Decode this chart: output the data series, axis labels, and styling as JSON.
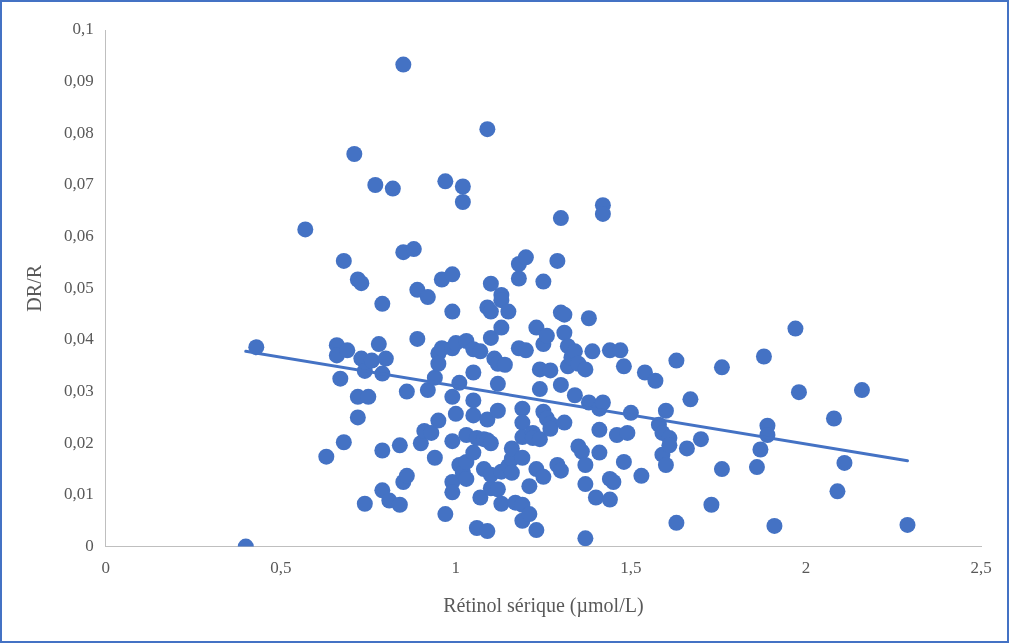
{
  "chart_data": {
    "type": "scatter",
    "xlabel": "Rétinol sérique (µmol/L)",
    "ylabel": "DR/R",
    "marker": "circle",
    "grid": false,
    "legend": false,
    "xlim": [
      0,
      2.5
    ],
    "xticks": [
      0,
      {
        "value": 0.5,
        "label": "0,5"
      },
      1,
      {
        "value": 1.5,
        "label": "1,5"
      },
      2,
      {
        "value": 2.5,
        "label": "2,5"
      }
    ],
    "ylim": [
      0,
      0.1
    ],
    "yticks": [
      0,
      {
        "value": 0.01,
        "label": "0,01"
      },
      {
        "value": 0.02,
        "label": "0,02"
      },
      {
        "value": 0.03,
        "label": "0,03"
      },
      {
        "value": 0.04,
        "label": "0,04"
      },
      {
        "value": 0.05,
        "label": "0,05"
      },
      {
        "value": 0.06,
        "label": "0,06"
      },
      {
        "value": 0.07,
        "label": "0,07"
      },
      {
        "value": 0.08,
        "label": "0,08"
      },
      {
        "value": 0.09,
        "label": "0,09"
      },
      {
        "value": 0.1,
        "label": "0,1"
      }
    ],
    "series": [
      {
        "color": "#4472c4",
        "x": [
          0.4,
          0.43,
          0.57,
          0.63,
          0.66,
          0.66,
          0.68,
          0.67,
          0.68,
          0.69,
          0.71,
          0.72,
          0.73,
          0.72,
          0.72,
          0.73,
          0.74,
          0.74,
          0.76,
          0.75,
          0.77,
          0.78,
          0.79,
          0.79,
          0.79,
          0.8,
          0.79,
          0.81,
          0.82,
          0.84,
          0.84,
          0.85,
          0.85,
          0.85,
          0.86,
          0.86,
          0.88,
          0.89,
          0.89,
          0.9,
          0.91,
          0.92,
          0.92,
          0.93,
          0.94,
          0.95,
          0.95,
          0.95,
          0.94,
          0.96,
          0.96,
          0.97,
          0.97,
          0.99,
          0.99,
          0.99,
          0.99,
          0.99,
          0.99,
          0.99,
          1.0,
          1.0,
          1.01,
          1.01,
          1.02,
          1.02,
          1.02,
          1.03,
          1.03,
          1.03,
          1.03,
          1.05,
          1.05,
          1.05,
          1.05,
          1.05,
          1.06,
          1.06,
          1.07,
          1.07,
          1.08,
          1.08,
          1.09,
          1.09,
          1.09,
          1.09,
          1.1,
          1.09,
          1.1,
          1.1,
          1.1,
          1.1,
          1.1,
          1.11,
          1.12,
          1.12,
          1.12,
          1.12,
          1.13,
          1.13,
          1.13,
          1.13,
          1.13,
          1.14,
          1.15,
          1.15,
          1.16,
          1.16,
          1.16,
          1.17,
          1.18,
          1.18,
          1.18,
          1.19,
          1.19,
          1.19,
          1.19,
          1.19,
          1.19,
          1.2,
          1.2,
          1.21,
          1.21,
          1.22,
          1.22,
          1.23,
          1.23,
          1.23,
          1.24,
          1.24,
          1.24,
          1.25,
          1.25,
          1.25,
          1.25,
          1.26,
          1.26,
          1.27,
          1.27,
          1.27,
          1.29,
          1.29,
          1.3,
          1.3,
          1.3,
          1.3,
          1.31,
          1.31,
          1.31,
          1.32,
          1.32,
          1.33,
          1.34,
          1.34,
          1.35,
          1.35,
          1.36,
          1.37,
          1.37,
          1.37,
          1.37,
          1.38,
          1.38,
          1.39,
          1.4,
          1.41,
          1.41,
          1.41,
          1.42,
          1.42,
          1.42,
          1.44,
          1.44,
          1.44,
          1.45,
          1.46,
          1.47,
          1.48,
          1.48,
          1.49,
          1.5,
          1.53,
          1.54,
          1.57,
          1.58,
          1.59,
          1.59,
          1.6,
          1.6,
          1.61,
          1.61,
          1.63,
          1.63,
          1.66,
          1.67,
          1.7,
          1.73,
          1.76,
          1.76,
          1.86,
          1.87,
          1.88,
          1.89,
          1.89,
          1.91,
          1.97,
          1.98,
          2.08,
          2.09,
          2.11,
          2.16,
          2.29
        ],
        "values": [
          0.0,
          0.0386,
          0.0614,
          0.0174,
          0.039,
          0.037,
          0.0553,
          0.0325,
          0.0202,
          0.038,
          0.076,
          0.0517,
          0.051,
          0.025,
          0.029,
          0.0364,
          0.034,
          0.0083,
          0.036,
          0.029,
          0.07,
          0.0392,
          0.0109,
          0.047,
          0.0335,
          0.0364,
          0.0186,
          0.0089,
          0.0693,
          0.0196,
          0.0081,
          0.0933,
          0.057,
          0.0125,
          0.03,
          0.0137,
          0.0576,
          0.0497,
          0.0402,
          0.02,
          0.0224,
          0.0483,
          0.0303,
          0.022,
          0.0327,
          0.0374,
          0.0354,
          0.0244,
          0.0172,
          0.0517,
          0.0384,
          0.0063,
          0.0707,
          0.0384,
          0.0527,
          0.0455,
          0.029,
          0.0125,
          0.0105,
          0.0204,
          0.0394,
          0.0257,
          0.0317,
          0.0158,
          0.0143,
          0.0667,
          0.0697,
          0.0398,
          0.0216,
          0.0164,
          0.0131,
          0.0337,
          0.0382,
          0.0254,
          0.0283,
          0.0182,
          0.0036,
          0.021,
          0.0378,
          0.0095,
          0.015,
          0.0208,
          0.0808,
          0.0463,
          0.0246,
          0.0206,
          0.0113,
          0.003,
          0.0509,
          0.0404,
          0.0139,
          0.02,
          0.0455,
          0.0364,
          0.0354,
          0.0315,
          0.0263,
          0.0111,
          0.0487,
          0.0424,
          0.0477,
          0.0083,
          0.0145,
          0.0352,
          0.0455,
          0.0156,
          0.017,
          0.019,
          0.0143,
          0.0085,
          0.0519,
          0.0547,
          0.0384,
          0.0081,
          0.005,
          0.0172,
          0.0267,
          0.024,
          0.0212,
          0.038,
          0.056,
          0.0117,
          0.0063,
          0.022,
          0.021,
          0.015,
          0.0032,
          0.0424,
          0.0305,
          0.0343,
          0.0208,
          0.0513,
          0.0261,
          0.0135,
          0.0392,
          0.0248,
          0.0408,
          0.0238,
          0.0341,
          0.0228,
          0.0158,
          0.0553,
          0.0636,
          0.0147,
          0.0313,
          0.0453,
          0.0414,
          0.024,
          0.0449,
          0.0349,
          0.0388,
          0.0366,
          0.0293,
          0.0378,
          0.0354,
          0.0194,
          0.0184,
          0.0158,
          0.0121,
          0.0016,
          0.0343,
          0.0442,
          0.0279,
          0.0378,
          0.0095,
          0.0267,
          0.0226,
          0.0182,
          0.0279,
          0.0661,
          0.0644,
          0.038,
          0.0131,
          0.0091,
          0.0125,
          0.0216,
          0.038,
          0.0349,
          0.0164,
          0.022,
          0.0259,
          0.0137,
          0.0337,
          0.0321,
          0.0236,
          0.0178,
          0.022,
          0.0263,
          0.0158,
          0.021,
          0.0196,
          0.036,
          0.0046,
          0.019,
          0.0285,
          0.0208,
          0.0081,
          0.0347,
          0.015,
          0.0154,
          0.0188,
          0.0368,
          0.0234,
          0.0216,
          0.004,
          0.0422,
          0.0299,
          0.0248,
          0.0107,
          0.0162,
          0.0303,
          0.0042
        ]
      },
      {
        "type": "line",
        "marker": "none",
        "color": "#4472c4",
        "x": [
          0.4,
          2.29
        ],
        "values": [
          0.0378,
          0.0166
        ]
      }
    ]
  }
}
